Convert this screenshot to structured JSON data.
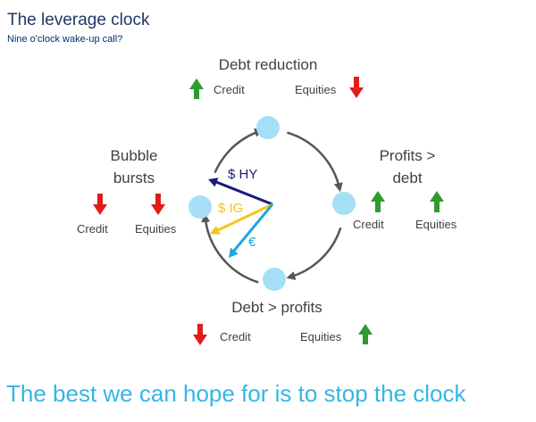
{
  "title": "The leverage clock",
  "subtitle": "Nine o'clock wake-up call?",
  "phases": {
    "top": {
      "name": "Debt reduction",
      "credit_label": "Credit",
      "credit_direction": "up",
      "equities_label": "Equities",
      "equities_direction": "down"
    },
    "right": {
      "name_line1": "Profits >",
      "name_line2": "debt",
      "credit_label": "Credit",
      "credit_direction": "up",
      "equities_label": "Equities",
      "equities_direction": "up"
    },
    "bottom": {
      "name": "Debt > profits",
      "credit_label": "Credit",
      "credit_direction": "down",
      "equities_label": "Equities",
      "equities_direction": "up"
    },
    "left": {
      "name_line1": "Bubble",
      "name_line2": "bursts",
      "credit_label": "Credit",
      "credit_direction": "down",
      "equities_label": "Equities",
      "equities_direction": "down"
    }
  },
  "hands": [
    {
      "label": "$ HY",
      "color": "#1a1a7a"
    },
    {
      "label": "$ IG",
      "color": "#f5c518"
    },
    {
      "label": "€",
      "color": "#1ea5e0"
    }
  ],
  "colors": {
    "up_arrow": "#2e9b2e",
    "down_arrow": "#e31b1b",
    "dial_circle": "#a6dff5",
    "dial_arc": "#555555"
  },
  "tagline": "The best we can hope for is to stop the clock"
}
